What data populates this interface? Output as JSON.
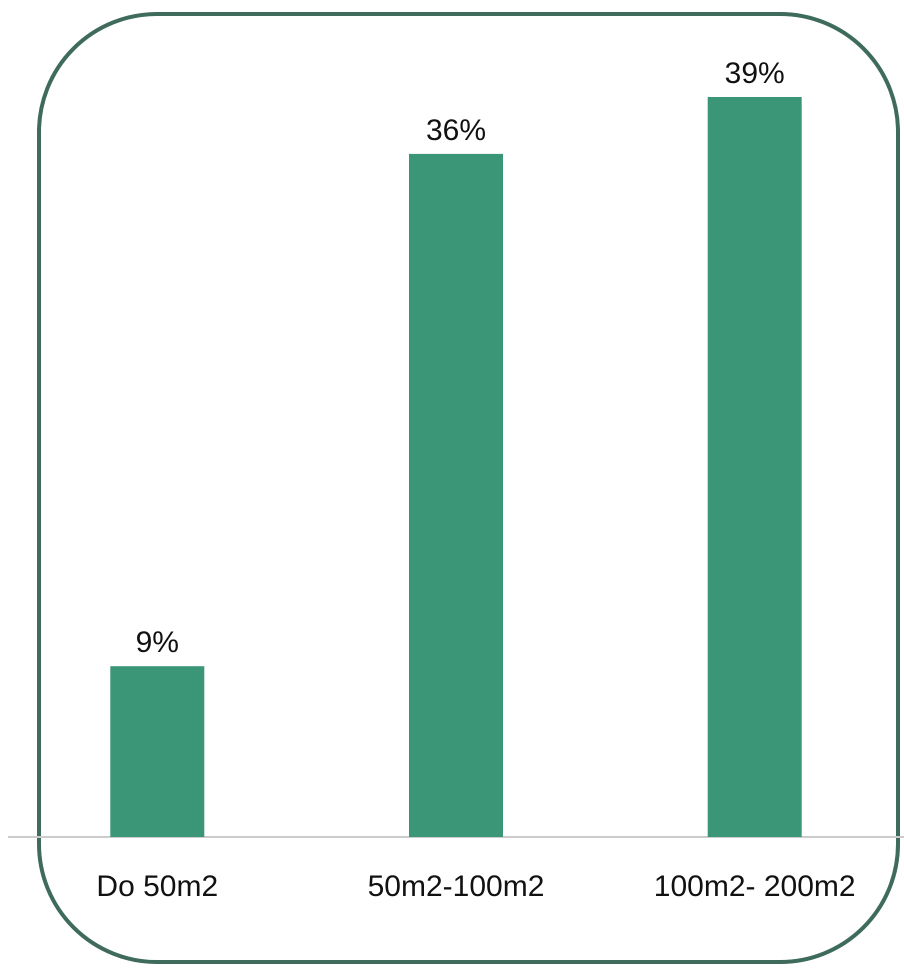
{
  "chart_data": {
    "type": "bar",
    "categories": [
      "Do 50m2",
      "50m2-100m2",
      "100m2- 200m2"
    ],
    "values": [
      9,
      36,
      39
    ],
    "value_labels": [
      "9%",
      "36%",
      "39%"
    ],
    "ylim": [
      0,
      40
    ],
    "grid": false,
    "colors": {
      "bar": "#3a9677",
      "frame": "#3e6b5c",
      "baseline": "#cccccc"
    }
  }
}
